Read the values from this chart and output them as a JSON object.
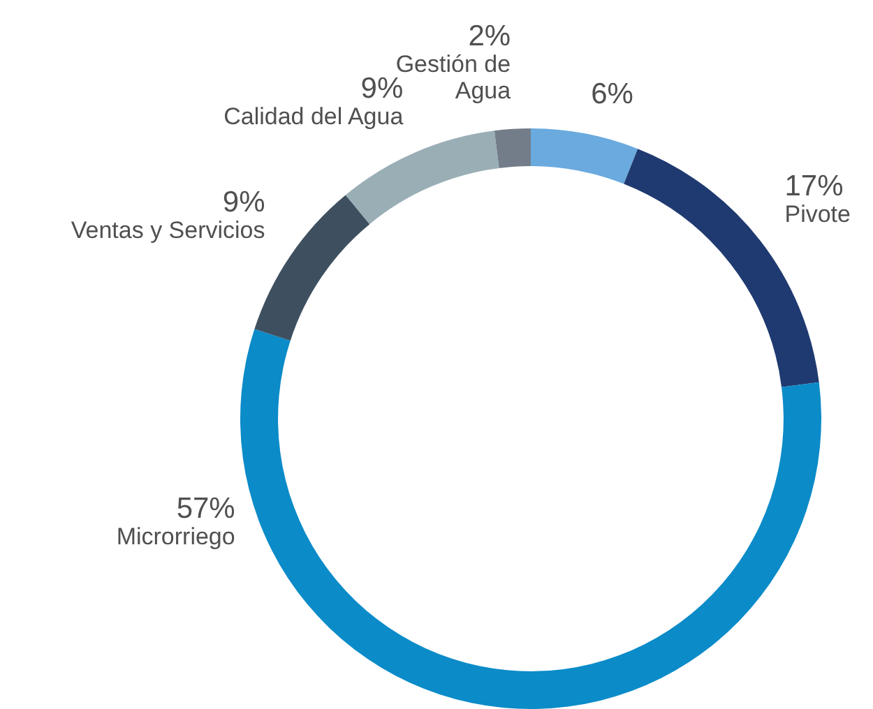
{
  "chart_data": {
    "type": "donut",
    "categories": [
      null,
      "Pivote",
      "Microrriego",
      "Ventas y Servicios",
      "Calidad del Agua",
      "Gestión de Agua"
    ],
    "values": [
      6,
      17,
      57,
      9,
      9,
      2
    ],
    "value_labels": [
      "6%",
      "17%",
      "57%",
      "9%",
      "9%",
      "2%"
    ],
    "colors": [
      "#6aaade",
      "#1f3a70",
      "#0b8bc8",
      "#3e5060",
      "#9aaeb6",
      "#737d8a"
    ],
    "legend": false
  }
}
